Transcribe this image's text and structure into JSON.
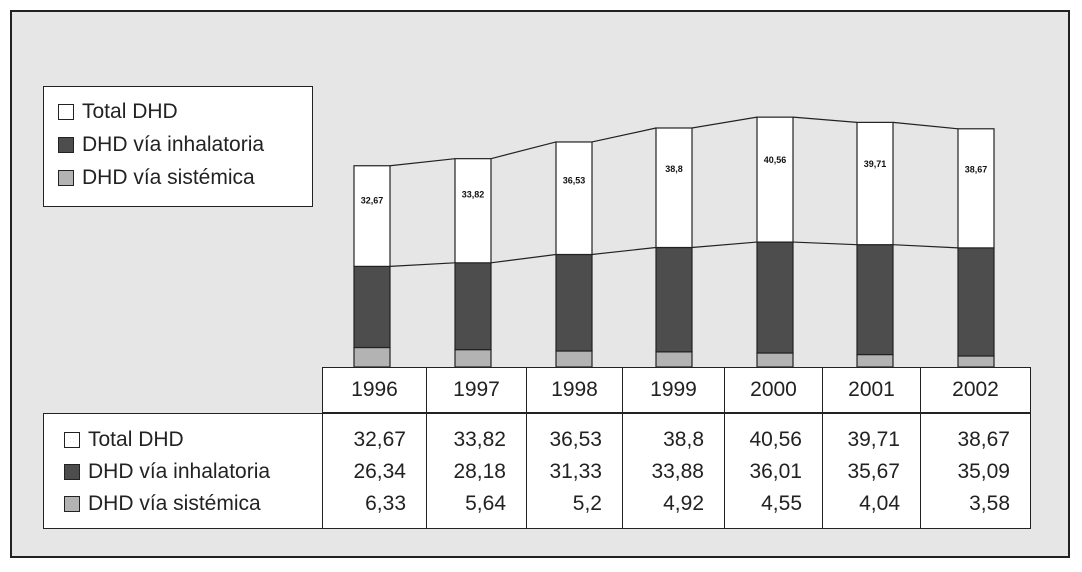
{
  "chart_data": {
    "type": "bar",
    "stacked": true,
    "categories": [
      "1996",
      "1997",
      "1998",
      "1999",
      "2000",
      "2001",
      "2002"
    ],
    "series": [
      {
        "name": "Total DHD",
        "values": [
          32.67,
          33.82,
          36.53,
          38.8,
          40.56,
          39.71,
          38.67
        ],
        "labels": [
          "32,67",
          "33,82",
          "36,53",
          "38,8",
          "40,56",
          "39,71",
          "38,67"
        ],
        "color": "#ffffff"
      },
      {
        "name": "DHD vía inhalatoria",
        "values": [
          26.34,
          28.18,
          31.33,
          33.88,
          36.01,
          35.67,
          35.09
        ],
        "labels": [
          "26,34",
          "28,18",
          "31,33",
          "33,88",
          "36,01",
          "35,67",
          "35,09"
        ],
        "color": "#4d4d4d"
      },
      {
        "name": "DHD vía sistémica",
        "values": [
          6.33,
          5.64,
          5.2,
          4.92,
          4.55,
          4.04,
          3.58
        ],
        "labels": [
          "6,33",
          "5,64",
          "5,2",
          "4,92",
          "4,55",
          "4,04",
          "3,58"
        ],
        "color": "#b3b3b3"
      }
    ],
    "legend_position": "top-left",
    "grid": false
  }
}
